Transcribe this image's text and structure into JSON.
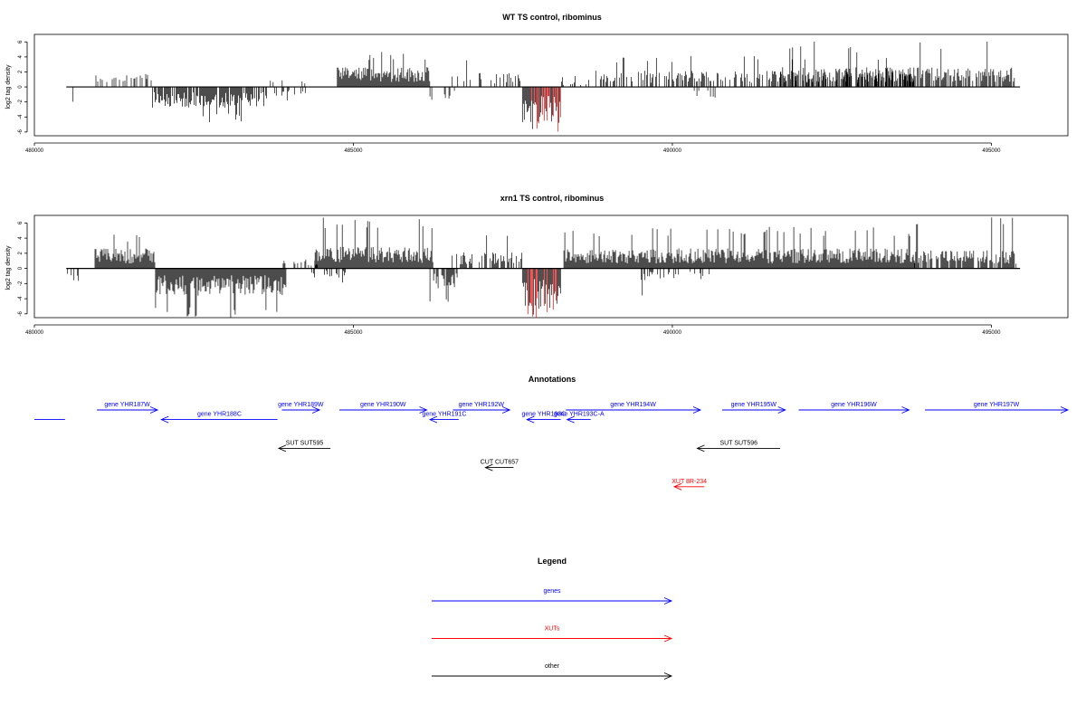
{
  "chart_data": [
    {
      "type": "bar",
      "title": "WT TS control, ribominus",
      "ylabel": "log2 tag density",
      "xlim": [
        480000,
        496200
      ],
      "ylim": [
        -6.5,
        7
      ],
      "x_ticks": [
        "480000",
        "485000",
        "490000",
        "495000"
      ],
      "x_tick_values": [
        480000,
        485000,
        490000,
        495000
      ],
      "y_ticks": [
        "6",
        "4",
        "2",
        "0",
        "-2",
        "-4",
        "-6"
      ],
      "y_tick_values": [
        6,
        4,
        2,
        0,
        -2,
        -4,
        -6
      ],
      "baseline": {
        "from": 480500,
        "to": 495450
      },
      "highlight_color": "#ff0000",
      "segments": [
        {
          "start": 480520,
          "end": 480620,
          "sign": -1,
          "mean": 1.8,
          "max": 2.6,
          "density": 0.3
        },
        {
          "start": 480950,
          "end": 481850,
          "sign": 1,
          "mean": 1.5,
          "max": 3.2,
          "density": 0.35
        },
        {
          "start": 481850,
          "end": 483650,
          "sign": -1,
          "mean": 2.3,
          "max": 4.7,
          "density": 0.8
        },
        {
          "start": 483650,
          "end": 484300,
          "sign": -1,
          "mean": 1.0,
          "max": 2.0,
          "density": 0.2
        },
        {
          "start": 483700,
          "end": 484350,
          "sign": 1,
          "mean": 0.8,
          "max": 1.3,
          "density": 0.15
        },
        {
          "start": 484750,
          "end": 486200,
          "sign": 1,
          "mean": 2.2,
          "max": 4.8,
          "density": 1.0
        },
        {
          "start": 486200,
          "end": 486600,
          "sign": -1,
          "mean": 1.5,
          "max": 3.2,
          "density": 0.3
        },
        {
          "start": 486550,
          "end": 487650,
          "sign": 1,
          "mean": 1.6,
          "max": 4.0,
          "density": 0.3
        },
        {
          "start": 487650,
          "end": 488250,
          "sign": -1,
          "mean": 4.0,
          "max": 6.3,
          "density": 1.2,
          "red": true
        },
        {
          "start": 488250,
          "end": 488700,
          "sign": 1,
          "mean": 0.8,
          "max": 1.5,
          "density": 0.2
        },
        {
          "start": 488800,
          "end": 493800,
          "sign": 1,
          "mean": 1.8,
          "max": 4.2,
          "density": 0.45
        },
        {
          "start": 490300,
          "end": 490700,
          "sign": -1,
          "mean": 1.2,
          "max": 2.4,
          "density": 0.15
        },
        {
          "start": 491700,
          "end": 495400,
          "sign": 1,
          "mean": 2.2,
          "max": 6.1,
          "density": 0.75
        }
      ]
    },
    {
      "type": "bar",
      "title": "xrn1 TS control, ribominus",
      "ylabel": "log2 tag density",
      "xlim": [
        480000,
        496200
      ],
      "ylim": [
        -6.5,
        7
      ],
      "x_ticks": [
        "480000",
        "485000",
        "490000",
        "495000"
      ],
      "x_tick_values": [
        480000,
        485000,
        490000,
        495000
      ],
      "y_ticks": [
        "6",
        "4",
        "2",
        "0",
        "-2",
        "-4",
        "-6"
      ],
      "y_tick_values": [
        6,
        4,
        2,
        0,
        -2,
        -4,
        -6
      ],
      "baseline": {
        "from": 480500,
        "to": 495450
      },
      "highlight_color": "#ff0000",
      "segments": [
        {
          "start": 480520,
          "end": 480700,
          "sign": -1,
          "mean": 1.8,
          "max": 3.0,
          "density": 0.4
        },
        {
          "start": 480950,
          "end": 481900,
          "sign": 1,
          "mean": 2.2,
          "max": 4.7,
          "density": 1.0
        },
        {
          "start": 481900,
          "end": 483950,
          "sign": -1,
          "mean": 3.0,
          "max": 6.6,
          "density": 1.2
        },
        {
          "start": 483900,
          "end": 484450,
          "sign": 1,
          "mean": 1.0,
          "max": 2.5,
          "density": 0.4
        },
        {
          "start": 484350,
          "end": 484900,
          "sign": -1,
          "mean": 1.0,
          "max": 2.0,
          "density": 0.3
        },
        {
          "start": 484400,
          "end": 486250,
          "sign": 1,
          "mean": 2.4,
          "max": 7.0,
          "density": 1.4
        },
        {
          "start": 486200,
          "end": 486650,
          "sign": -1,
          "mean": 2.2,
          "max": 4.8,
          "density": 0.7
        },
        {
          "start": 486550,
          "end": 487650,
          "sign": 1,
          "mean": 1.8,
          "max": 5.5,
          "density": 0.5
        },
        {
          "start": 487650,
          "end": 488250,
          "sign": -1,
          "mean": 4.5,
          "max": 6.6,
          "density": 1.5,
          "red": true
        },
        {
          "start": 488300,
          "end": 493800,
          "sign": 1,
          "mean": 2.2,
          "max": 5.5,
          "density": 1.0
        },
        {
          "start": 489500,
          "end": 490600,
          "sign": -1,
          "mean": 1.3,
          "max": 4.0,
          "density": 0.3
        },
        {
          "start": 493800,
          "end": 495400,
          "sign": 1,
          "mean": 2.0,
          "max": 6.8,
          "density": 0.8
        }
      ]
    }
  ],
  "annotations": {
    "title": "Annotations",
    "colors": {
      "genes": "#0000ff",
      "XUTs": "#ff0000",
      "other": "#000000"
    },
    "features": [
      {
        "label": "",
        "start": 479700,
        "end": 480480,
        "row": 1,
        "strand": "none",
        "kind": "genes"
      },
      {
        "label": "gene YHR187W",
        "start": 480980,
        "end": 481930,
        "row": 0,
        "strand": "+",
        "kind": "genes"
      },
      {
        "label": "gene YHR188C",
        "start": 481990,
        "end": 483810,
        "row": 1,
        "strand": "-",
        "kind": "genes"
      },
      {
        "label": "gene YHR189W",
        "start": 483880,
        "end": 484470,
        "row": 0,
        "strand": "+",
        "kind": "genes"
      },
      {
        "label": "gene YHR190W",
        "start": 484780,
        "end": 486150,
        "row": 0,
        "strand": "+",
        "kind": "genes"
      },
      {
        "label": "gene YHR191C",
        "start": 486200,
        "end": 486650,
        "row": 1,
        "strand": "-",
        "kind": "genes"
      },
      {
        "label": "gene YHR192W",
        "start": 486560,
        "end": 487450,
        "row": 0,
        "strand": "+",
        "kind": "genes"
      },
      {
        "label": "gene YHR193C",
        "start": 487720,
        "end": 488250,
        "row": 1,
        "strand": "-",
        "kind": "genes"
      },
      {
        "label": "gene YHR193C-A",
        "start": 488350,
        "end": 488720,
        "row": 1,
        "strand": "-",
        "kind": "genes"
      },
      {
        "label": "gene YHR194W",
        "start": 488330,
        "end": 490440,
        "row": 0,
        "strand": "+",
        "kind": "genes"
      },
      {
        "label": "gene YHR195W",
        "start": 490780,
        "end": 491770,
        "row": 0,
        "strand": "+",
        "kind": "genes"
      },
      {
        "label": "gene YHR196W",
        "start": 491980,
        "end": 493710,
        "row": 0,
        "strand": "+",
        "kind": "genes"
      },
      {
        "label": "gene YHR197W",
        "start": 493960,
        "end": 496200,
        "row": 0,
        "strand": "+",
        "kind": "genes"
      },
      {
        "label": "SUT SUT595",
        "start": 483830,
        "end": 484640,
        "row": 4,
        "strand": "-",
        "kind": "other"
      },
      {
        "label": "SUT SUT596",
        "start": 490390,
        "end": 491690,
        "row": 4,
        "strand": "-",
        "kind": "other"
      },
      {
        "label": "CUT CUT657",
        "start": 487070,
        "end": 487510,
        "row": 6,
        "strand": "-",
        "kind": "other"
      },
      {
        "label": "XUT 8R-234",
        "start": 490030,
        "end": 490500,
        "row": 8,
        "strand": "-",
        "kind": "XUTs"
      }
    ]
  },
  "legend": {
    "title": "Legend",
    "items": [
      {
        "label": "genes",
        "color": "#0000ff"
      },
      {
        "label": "XUTs",
        "color": "#ff0000"
      },
      {
        "label": "other",
        "color": "#000000"
      }
    ]
  }
}
